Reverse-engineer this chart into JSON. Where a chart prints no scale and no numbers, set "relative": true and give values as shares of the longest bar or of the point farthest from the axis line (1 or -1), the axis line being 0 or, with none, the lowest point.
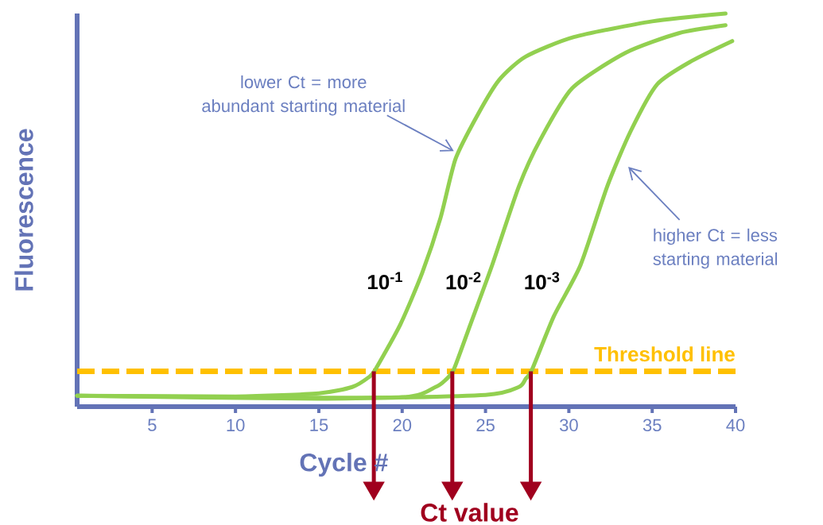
{
  "chart_data": {
    "type": "line",
    "relative": true,
    "xlabel": "Cycle #",
    "ylabel": "Fluorescence",
    "xlim": [
      0.5,
      40
    ],
    "xticks": [
      5,
      10,
      15,
      20,
      25,
      30,
      35,
      40
    ],
    "grid": false,
    "marker": "none",
    "line_style": "solid",
    "series": [
      {
        "name": "10$^{-1}$",
        "color": "#92d050",
        "x": [
          0.5,
          10,
          15,
          17,
          18,
          18.4,
          19.9,
          21.2,
          22.3,
          23.2,
          24.5,
          25.8,
          27.4,
          30.3,
          35,
          39.4
        ],
        "values": [
          0.028,
          0.026,
          0.034,
          0.05,
          0.075,
          0.095,
          0.21,
          0.34,
          0.48,
          0.63,
          0.74,
          0.83,
          0.89,
          0.94,
          0.98,
          1.0
        ]
      },
      {
        "name": "10$^{-2}$",
        "color": "#92d050",
        "x": [
          0.5,
          10,
          20,
          22,
          22.6,
          23.1,
          24.1,
          25.4,
          27,
          28.3,
          30.2,
          33.4,
          36.6,
          39.4
        ],
        "values": [
          0.028,
          0.024,
          0.024,
          0.05,
          0.068,
          0.095,
          0.21,
          0.36,
          0.56,
          0.68,
          0.81,
          0.9,
          0.95,
          0.97
        ]
      },
      {
        "name": "10$^{-3}$",
        "color": "#92d050",
        "x": [
          0.5,
          15,
          25,
          27,
          27.4,
          27.8,
          29.1,
          30.7,
          32.3,
          33.7,
          35.3,
          37.4,
          39.8
        ],
        "values": [
          0.028,
          0.02,
          0.03,
          0.05,
          0.07,
          0.095,
          0.23,
          0.36,
          0.56,
          0.7,
          0.82,
          0.88,
          0.93
        ]
      }
    ],
    "ref_lines": [
      {
        "axis": "y",
        "value": 0.09,
        "label": "Threshold line",
        "color": "#ffc000",
        "line_style": "dashed"
      }
    ],
    "annotations": [
      {
        "text": "lower Ct = more abundant starting material",
        "x": 23.1,
        "y": 0.65
      },
      "higher Ct = less starting material",
      "Ct value"
    ]
  }
}
